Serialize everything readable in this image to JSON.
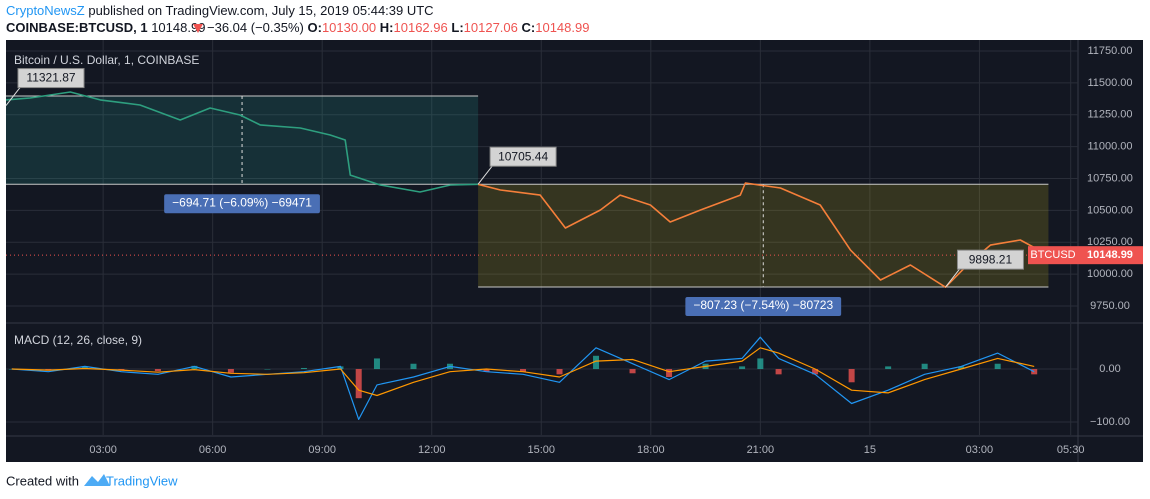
{
  "header": {
    "author": "CryptoNewsZ",
    "published": "published on TradingView.com, July 15, 2019 05:44:39 UTC",
    "symbol": "COINBASE:BTCUSD, 1",
    "last": "10148.99",
    "change": "−36.04 (−0.35%)",
    "ohlc": [
      {
        "label": "O:",
        "value": "10130.00"
      },
      {
        "label": "H:",
        "value": "10162.96"
      },
      {
        "label": "L:",
        "value": "10127.06"
      },
      {
        "label": "C:",
        "value": "10148.99"
      }
    ]
  },
  "chart_data": [
    {
      "type": "line",
      "title": "Bitcoin / U.S. Dollar, 1, COINBASE",
      "x": [
        0.34,
        1.0,
        2.1,
        2.92,
        4.01,
        5.11,
        5.93,
        6.75,
        7.3,
        8.4,
        9.22,
        9.63,
        9.77,
        10.59,
        11.68,
        12.51,
        13.27,
        13.88,
        14.97,
        15.66,
        16.62,
        17.16,
        17.99,
        18.53,
        19.36,
        20.45,
        20.59,
        21.55,
        22.64,
        23.47,
        24.29,
        25.11,
        26.07,
        26.75,
        27.3,
        28.12,
        28.89
      ],
      "series": [
        {
          "color": "#2e9f7f",
          "values": [
            11366,
            11381,
            11428,
            11366,
            11326,
            11209,
            11303,
            11248,
            11170,
            11146,
            11091,
            11052,
            10777,
            10699,
            10644,
            10699,
            10705,
            null,
            null,
            null,
            null,
            null,
            null,
            null,
            null,
            null,
            null,
            null,
            null,
            null,
            null,
            null,
            null,
            null,
            null,
            null,
            null
          ]
        },
        {
          "color": "#f57f3a",
          "values": [
            null,
            null,
            null,
            null,
            null,
            null,
            null,
            null,
            null,
            null,
            null,
            null,
            null,
            null,
            null,
            null,
            10705,
            10660,
            10620,
            10362,
            10503,
            10620,
            10542,
            10409,
            10503,
            10620,
            10715,
            10676,
            10542,
            10189,
            9954,
            10072,
            9898,
            10095,
            10228,
            10268,
            10149
          ]
        }
      ],
      "xlim": [
        0.34,
        29.7
      ],
      "ylim": [
        9625,
        11836
      ],
      "yticks": [
        {
          "value": 9750,
          "label": "9750.00"
        },
        {
          "value": 10000,
          "label": "10000.00"
        },
        {
          "value": 10250,
          "label": "10250.00"
        },
        {
          "value": 10500,
          "label": "10500.00"
        },
        {
          "value": 10750,
          "label": "10750.00"
        },
        {
          "value": 11000,
          "label": "11000.00"
        },
        {
          "value": 11250,
          "label": "11250.00"
        },
        {
          "value": 11500,
          "label": "11500.00"
        },
        {
          "value": 11750,
          "label": "11750.00"
        }
      ],
      "grid": true,
      "measures": [
        {
          "x": [
            0.34,
            13.27
          ],
          "ylim": [
            10705,
            11397
          ],
          "color": "#26a69a",
          "label": "−694.71 (−6.09%) −69471"
        },
        {
          "x": [
            13.27,
            28.89
          ],
          "ylim": [
            9899,
            10705
          ],
          "color": "#d4c11e",
          "label": "−807.23 (−7.54%) −80723"
        }
      ],
      "callouts": [
        {
          "x": 0.34,
          "value": 11321.87
        },
        {
          "x": 13.27,
          "value": 10705.44
        },
        {
          "x": 26.07,
          "value": 9898.21
        }
      ],
      "last_price": {
        "name": "BTCUSD",
        "value": 10148.99,
        "label": "10148.99",
        "color": "#ef5350"
      }
    },
    {
      "type": "macd",
      "title": "MACD (12, 26, close, 9)",
      "x": [
        0.5,
        1.5,
        2.5,
        3.5,
        4.5,
        5.5,
        6.5,
        7.5,
        8.5,
        9.5,
        10,
        10.5,
        11.5,
        12.5,
        13.5,
        14.5,
        15.5,
        16.5,
        17.5,
        18.5,
        19.5,
        20.5,
        21,
        21.5,
        22.5,
        23.5,
        24.5,
        25.5,
        26.5,
        27.5,
        28.5
      ],
      "series": [
        {
          "color": "#2196f3",
          "values": [
            0,
            -5,
            5,
            -5,
            -10,
            5,
            -15,
            -10,
            -5,
            5,
            -95,
            -30,
            -15,
            5,
            -5,
            -10,
            -25,
            40,
            10,
            -20,
            15,
            20,
            60,
            20,
            -10,
            -65,
            -40,
            -10,
            5,
            30,
            -5
          ]
        },
        {
          "color": "#ff9800",
          "values": [
            0,
            -2,
            1,
            -2,
            -6,
            -1,
            -8,
            -10,
            -7,
            0,
            -40,
            -50,
            -25,
            -5,
            0,
            -5,
            -15,
            15,
            18,
            -5,
            5,
            15,
            40,
            30,
            0,
            -40,
            -45,
            -20,
            0,
            20,
            5
          ]
        }
      ],
      "histogram": {
        "color": "#26a69a",
        "negative_color": "#ef5350",
        "values": [
          0,
          -3,
          4,
          -3,
          -4,
          6,
          -7,
          0,
          2,
          5,
          -55,
          20,
          10,
          10,
          -5,
          -5,
          -10,
          25,
          -8,
          -15,
          10,
          5,
          20,
          -10,
          -10,
          -25,
          5,
          10,
          5,
          10,
          -10
        ]
      },
      "xlim": [
        0.34,
        29.7
      ],
      "ylim": [
        -124.5,
        85
      ],
      "yticks": [
        {
          "value": 0,
          "label": "0.00"
        },
        {
          "value": -100,
          "label": "−100.00"
        }
      ],
      "xticks": [
        {
          "value": 3,
          "label": "03:00"
        },
        {
          "value": 6,
          "label": "06:00"
        },
        {
          "value": 9,
          "label": "09:00"
        },
        {
          "value": 12,
          "label": "12:00"
        },
        {
          "value": 15,
          "label": "15:00"
        },
        {
          "value": 18,
          "label": "18:00"
        },
        {
          "value": 21,
          "label": "21:00"
        },
        {
          "value": 24,
          "label": "15"
        },
        {
          "value": 27,
          "label": "03:00"
        },
        {
          "value": 29.5,
          "label": "05:30"
        }
      ],
      "grid": true
    }
  ],
  "footer": {
    "prefix": "Created with",
    "brand": "TradingView"
  }
}
